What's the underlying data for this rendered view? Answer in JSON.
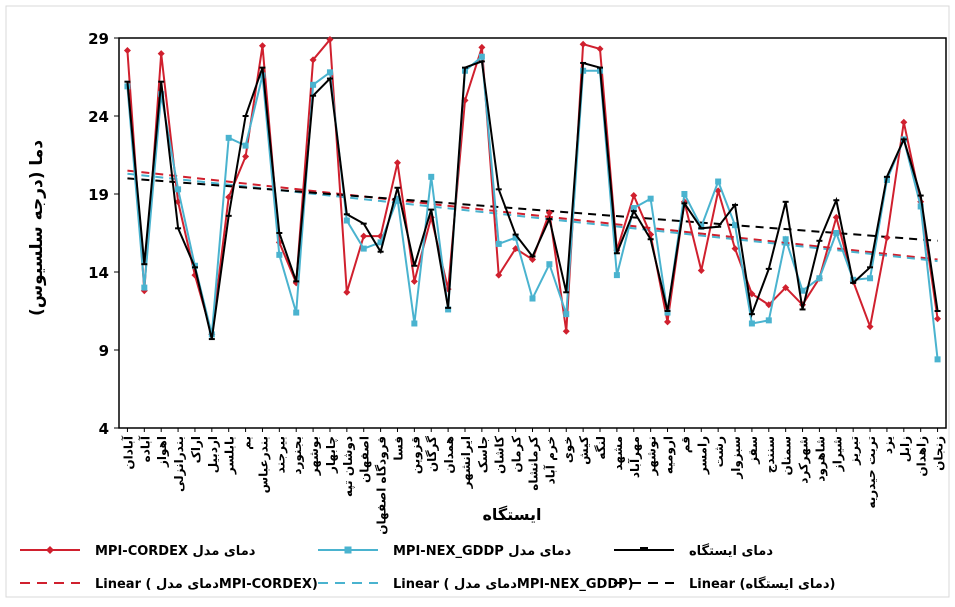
{
  "chart_data": {
    "type": "line",
    "ylabel": "دما (درجه سلسیوس)",
    "xlabel": "ایستگاه",
    "ylim": [
      4,
      29
    ],
    "yticks": [
      4,
      9,
      14,
      19,
      24,
      29
    ],
    "grid": false,
    "legend_position": "bottom",
    "categories": [
      "آبادان",
      "آباده",
      "اهواز",
      "بندرانزلی",
      "اراک",
      "اردبیل",
      "بابلسر",
      "بم",
      "بندرعباس",
      "بیرجند",
      "بجنورد",
      "بوشهر",
      "چابهار",
      "دوشان تپه",
      "اصفهان",
      "فرودگاه اصفهان",
      "فسا",
      "قزوین",
      "گرگان",
      "همدان",
      "ایرانشهر",
      "جاسک",
      "کاشان",
      "کرمان",
      "کرمانشاه",
      "خرم آباد",
      "خوی",
      "کیش",
      "لنگه",
      "مشهد",
      "مهرآباد",
      "نوشهر",
      "ارومیه",
      "قم",
      "رامسر",
      "رشت",
      "سبزوار",
      "سقز",
      "سنندج",
      "سمنان",
      "شهرکرد",
      "شاهرود",
      "شیراز",
      "تبریز",
      "تربت حیدریه",
      "یزد",
      "زابل",
      "زاهدان",
      "زنجان"
    ],
    "series": [
      {
        "name": "دمای مدل MPI-CORDEX",
        "color": "#d0202e",
        "marker": "diamond",
        "values": [
          28.2,
          12.8,
          28.0,
          18.5,
          13.8,
          10.0,
          18.8,
          21.4,
          28.5,
          15.9,
          13.3,
          27.6,
          28.9,
          12.7,
          16.3,
          16.3,
          21.0,
          13.4,
          17.5,
          12.9,
          25.0,
          28.4,
          13.8,
          15.5,
          14.8,
          17.8,
          10.2,
          28.6,
          28.3,
          15.4,
          18.9,
          16.4,
          10.8,
          18.5,
          14.1,
          19.2,
          15.5,
          12.6,
          11.9,
          13.0,
          11.9,
          13.6,
          17.5,
          13.4,
          10.5,
          16.2,
          23.6,
          18.5,
          11.0
        ]
      },
      {
        "name": "دمای مدل MPI-NEX_GDDP",
        "color": "#4ab3cf",
        "marker": "square",
        "values": [
          25.9,
          13.0,
          25.4,
          19.3,
          14.4,
          10.0,
          22.6,
          22.1,
          26.6,
          15.1,
          11.4,
          26.0,
          26.8,
          17.3,
          15.5,
          15.9,
          18.7,
          10.7,
          20.1,
          11.6,
          26.9,
          27.8,
          15.8,
          16.2,
          12.3,
          14.5,
          11.3,
          26.9,
          26.9,
          13.8,
          18.1,
          18.7,
          11.4,
          19.0,
          16.9,
          19.8,
          17.0,
          10.7,
          10.9,
          16.1,
          12.8,
          13.6,
          16.5,
          13.5,
          13.6,
          19.9,
          22.5,
          18.2,
          8.4
        ]
      },
      {
        "name": "دمای ایستگاه",
        "color": "#000000",
        "marker": "dash",
        "values": [
          26.2,
          14.5,
          26.2,
          16.8,
          14.3,
          9.7,
          17.6,
          24.0,
          27.1,
          16.5,
          13.4,
          25.3,
          26.4,
          17.7,
          17.1,
          15.3,
          19.4,
          14.4,
          18.0,
          11.7,
          27.1,
          27.5,
          19.3,
          16.4,
          15.0,
          17.4,
          12.7,
          27.4,
          27.1,
          15.2,
          17.9,
          16.1,
          11.5,
          18.4,
          16.8,
          16.9,
          18.3,
          11.3,
          14.2,
          18.5,
          11.6,
          16.0,
          18.6,
          13.3,
          14.3,
          20.1,
          22.5,
          18.9,
          11.5
        ]
      }
    ],
    "trendlines": [
      {
        "name": "Linear (دمای مدل MPI-CORDEX)",
        "color": "#d0202e",
        "start": 20.5,
        "end": 14.8
      },
      {
        "name": "Linear (دمای مدل MPI-NEX_GDDP)",
        "color": "#4ab3cf",
        "start": 20.3,
        "end": 14.7
      },
      {
        "name": "Linear (دمای ایستگاه)",
        "color": "#000000",
        "start": 20.0,
        "end": 16.0
      }
    ],
    "legend": {
      "row1": [
        "MPI-CORDEX دمای مدل",
        "MPI-NEX_GDDP دمای مدل",
        "دمای ایستگاه"
      ],
      "row2": [
        "Linear ( دمای مدلMPI-CORDEX)",
        "Linear ( دمای مدلMPI-NEX_GDDP)",
        "Linear (دمای ایستگاه)"
      ]
    }
  }
}
